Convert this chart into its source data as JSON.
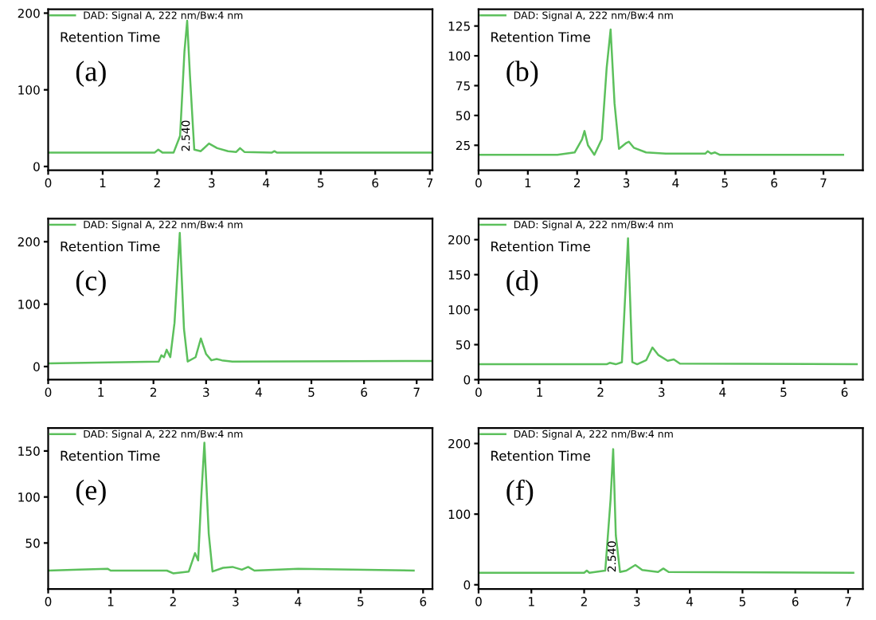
{
  "chart_data": [
    {
      "type": "line",
      "legend": "top left",
      "grid": false,
      "xlim": [
        0,
        7.05
      ],
      "ylim": [
        -5,
        205
      ],
      "xticks": [
        0,
        1,
        2,
        3,
        4,
        5,
        6,
        7
      ],
      "yticks": [
        0,
        100,
        200
      ],
      "x": [
        0,
        1.95,
        2.02,
        2.1,
        2.3,
        2.42,
        2.5,
        2.55,
        2.6,
        2.68,
        2.8,
        2.95,
        3.1,
        3.3,
        3.45,
        3.52,
        3.6,
        4.1,
        4.15,
        4.2,
        7.05
      ],
      "series": [
        {
          "name": "DAD: Signal A, 222 nm/Bw:4 nm",
          "color": "#5cc05c",
          "values": [
            18,
            18,
            22,
            18,
            18,
            40,
            150,
            190,
            120,
            22,
            20,
            30,
            24,
            20,
            19,
            24,
            19,
            18,
            20,
            18,
            18
          ]
        }
      ],
      "annotations": [
        "Retention Time",
        "(a)",
        {
          "text": "2.540",
          "x": 2.54,
          "y": 40
        }
      ]
    },
    {
      "type": "line",
      "legend": "top left",
      "grid": false,
      "xlim": [
        0,
        7.8
      ],
      "ylim": [
        4,
        139
      ],
      "xticks": [
        0,
        1,
        2,
        3,
        4,
        5,
        6,
        7
      ],
      "yticks": [
        25,
        50,
        75,
        100,
        125
      ],
      "x": [
        0,
        1.6,
        1.95,
        2.1,
        2.15,
        2.22,
        2.35,
        2.5,
        2.6,
        2.68,
        2.76,
        2.85,
        3.0,
        3.05,
        3.15,
        3.4,
        3.8,
        4.6,
        4.65,
        4.72,
        4.8,
        4.9,
        7.4
      ],
      "series": [
        {
          "name": "DAD: Signal A, 222 nm/Bw:4 nm",
          "color": "#5cc05c",
          "values": [
            17,
            17,
            19,
            30,
            37,
            25,
            17,
            30,
            90,
            122,
            60,
            22,
            27,
            28,
            23,
            19,
            18,
            18,
            20,
            18,
            19,
            17,
            17
          ]
        }
      ],
      "annotations": [
        "Retention Time",
        "(b)"
      ]
    },
    {
      "type": "line",
      "legend": "top left",
      "grid": false,
      "xlim": [
        0,
        7.3
      ],
      "ylim": [
        -21,
        237
      ],
      "xticks": [
        0,
        1,
        2,
        3,
        4,
        5,
        6,
        7
      ],
      "yticks": [
        0,
        100,
        200
      ],
      "x": [
        0,
        2.1,
        2.15,
        2.2,
        2.25,
        2.32,
        2.4,
        2.5,
        2.58,
        2.65,
        2.8,
        2.9,
        3.0,
        3.1,
        3.2,
        3.3,
        3.5,
        7.3
      ],
      "series": [
        {
          "name": "DAD: Signal A, 222 nm/Bw:4 nm",
          "color": "#5cc05c",
          "values": [
            5,
            8,
            18,
            15,
            27,
            15,
            70,
            214,
            60,
            8,
            15,
            45,
            20,
            10,
            12,
            10,
            8,
            9
          ]
        }
      ],
      "annotations": [
        "Retention Time",
        "(c)"
      ]
    },
    {
      "type": "line",
      "legend": "top left",
      "grid": false,
      "xlim": [
        0,
        6.3
      ],
      "ylim": [
        0,
        230
      ],
      "xticks": [
        0,
        1,
        2,
        3,
        4,
        5,
        6
      ],
      "yticks": [
        0,
        50,
        100,
        150,
        200
      ],
      "x": [
        0,
        2.1,
        2.15,
        2.25,
        2.35,
        2.45,
        2.52,
        2.6,
        2.75,
        2.85,
        2.95,
        3.1,
        3.2,
        3.3,
        6.2
      ],
      "series": [
        {
          "name": "DAD: Signal A, 222 nm/Bw:4 nm",
          "color": "#5cc05c",
          "values": [
            22,
            22,
            24,
            22,
            25,
            202,
            25,
            22,
            28,
            46,
            35,
            27,
            29,
            23,
            22
          ]
        }
      ],
      "annotations": [
        "Retention Time",
        "(d)"
      ]
    },
    {
      "type": "line",
      "legend": "top left",
      "grid": false,
      "xlim": [
        0,
        6.15
      ],
      "ylim": [
        0,
        175
      ],
      "xticks": [
        0,
        1,
        2,
        3,
        4,
        5,
        6
      ],
      "yticks": [
        50,
        100,
        150
      ],
      "x": [
        0,
        0.5,
        0.95,
        1.0,
        1.9,
        2.0,
        2.25,
        2.35,
        2.4,
        2.45,
        2.5,
        2.57,
        2.63,
        2.8,
        2.95,
        3.1,
        3.2,
        3.3,
        4.0,
        5.85
      ],
      "series": [
        {
          "name": "DAD: Signal A, 222 nm/Bw:4 nm",
          "color": "#5cc05c",
          "values": [
            20,
            21,
            22,
            20,
            20,
            17,
            19,
            39,
            31,
            100,
            159,
            60,
            19,
            23,
            24,
            21,
            24,
            20,
            22,
            20
          ]
        }
      ],
      "annotations": [
        "Retention Time",
        "(e)"
      ]
    },
    {
      "type": "line",
      "legend": "top left",
      "grid": false,
      "xlim": [
        0,
        7.28
      ],
      "ylim": [
        -6,
        222
      ],
      "xticks": [
        0,
        1,
        2,
        3,
        4,
        5,
        6,
        7
      ],
      "yticks": [
        0,
        100,
        200
      ],
      "x": [
        0,
        2.0,
        2.05,
        2.1,
        2.4,
        2.5,
        2.55,
        2.6,
        2.68,
        2.8,
        2.97,
        3.1,
        3.4,
        3.5,
        3.6,
        7.1
      ],
      "series": [
        {
          "name": "DAD: Signal A, 222 nm/Bw:4 nm",
          "color": "#5cc05c",
          "values": [
            17,
            17,
            20,
            17,
            20,
            120,
            192,
            70,
            18,
            20,
            28,
            21,
            18,
            23,
            18,
            17
          ]
        }
      ],
      "annotations": [
        "Retention Time",
        "(f)",
        {
          "text": "2.540",
          "x": 2.54,
          "y": 40
        }
      ]
    }
  ]
}
